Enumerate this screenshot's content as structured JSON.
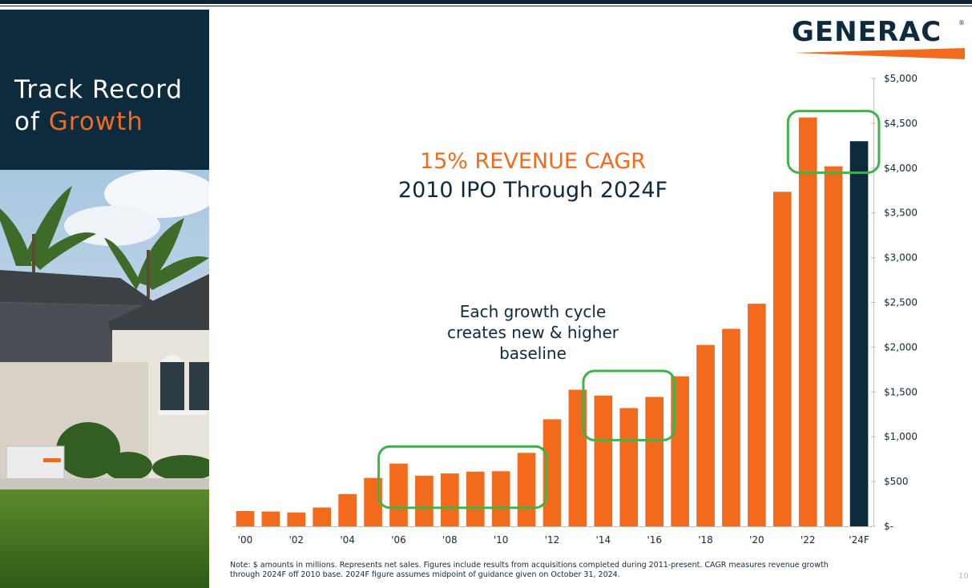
{
  "title": {
    "line1": "Track Record",
    "line2_prefix": "of ",
    "line2_accent": "Growth"
  },
  "logo": {
    "text": "GENERAC",
    "reg": "®"
  },
  "headline": {
    "line1": "15% REVENUE CAGR",
    "line2": "2010 IPO Through 2024F"
  },
  "annotation": {
    "cycle_note_l1": "Each growth cycle",
    "cycle_note_l2": "creates new & higher",
    "cycle_note_l3": "baseline"
  },
  "footnote": {
    "line1": "Note: $ amounts in millions. Represents net sales. Figures include results from acquisitions completed during 2011-present. CAGR measures revenue growth",
    "line2": "through 2024F off 2010 base. 2024F figure assumes midpoint of guidance given on October 31, 2024."
  },
  "page_number": "10",
  "colors": {
    "orange": "#f26b1d",
    "navy": "#0e2a3d",
    "green": "#3bb54a"
  },
  "chart_data": {
    "type": "bar",
    "categories": [
      "'00",
      "'01",
      "'02",
      "'03",
      "'04",
      "'05",
      "'06",
      "'07",
      "'08",
      "'09",
      "'10",
      "'11",
      "'12",
      "'13",
      "'14",
      "'15",
      "'16",
      "'17",
      "'18",
      "'19",
      "'20",
      "'21",
      "'22",
      "'23",
      "'24F"
    ],
    "x_tick_labels": [
      "'00",
      "",
      "'02",
      "",
      "'04",
      "",
      "'06",
      "",
      "'08",
      "",
      "'10",
      "",
      "'12",
      "",
      "'14",
      "",
      "'16",
      "",
      "'18",
      "",
      "'20",
      "",
      "'22",
      "",
      "'24F"
    ],
    "values": [
      170,
      165,
      155,
      210,
      360,
      540,
      700,
      565,
      590,
      610,
      615,
      820,
      1195,
      1525,
      1460,
      1320,
      1445,
      1675,
      2025,
      2205,
      2485,
      3735,
      4565,
      4020,
      4300
    ],
    "highlight_color_index": 24,
    "ylim": [
      0,
      5000
    ],
    "y_ticks": [
      0,
      500,
      1000,
      1500,
      2000,
      2500,
      3000,
      3500,
      4000,
      4500,
      5000
    ],
    "y_tick_labels": [
      "$-",
      "$500",
      "$1,000",
      "$1,500",
      "$2,000",
      "$2,500",
      "$3,000",
      "$3,500",
      "$4,000",
      "$4,500",
      "$5,000"
    ],
    "y_axis_position": "right",
    "grid": false,
    "highlight_boxes": [
      {
        "from": "'06",
        "to": "'11"
      },
      {
        "from": "'14",
        "to": "'16"
      },
      {
        "from": "'22",
        "to": "'24F"
      }
    ]
  }
}
